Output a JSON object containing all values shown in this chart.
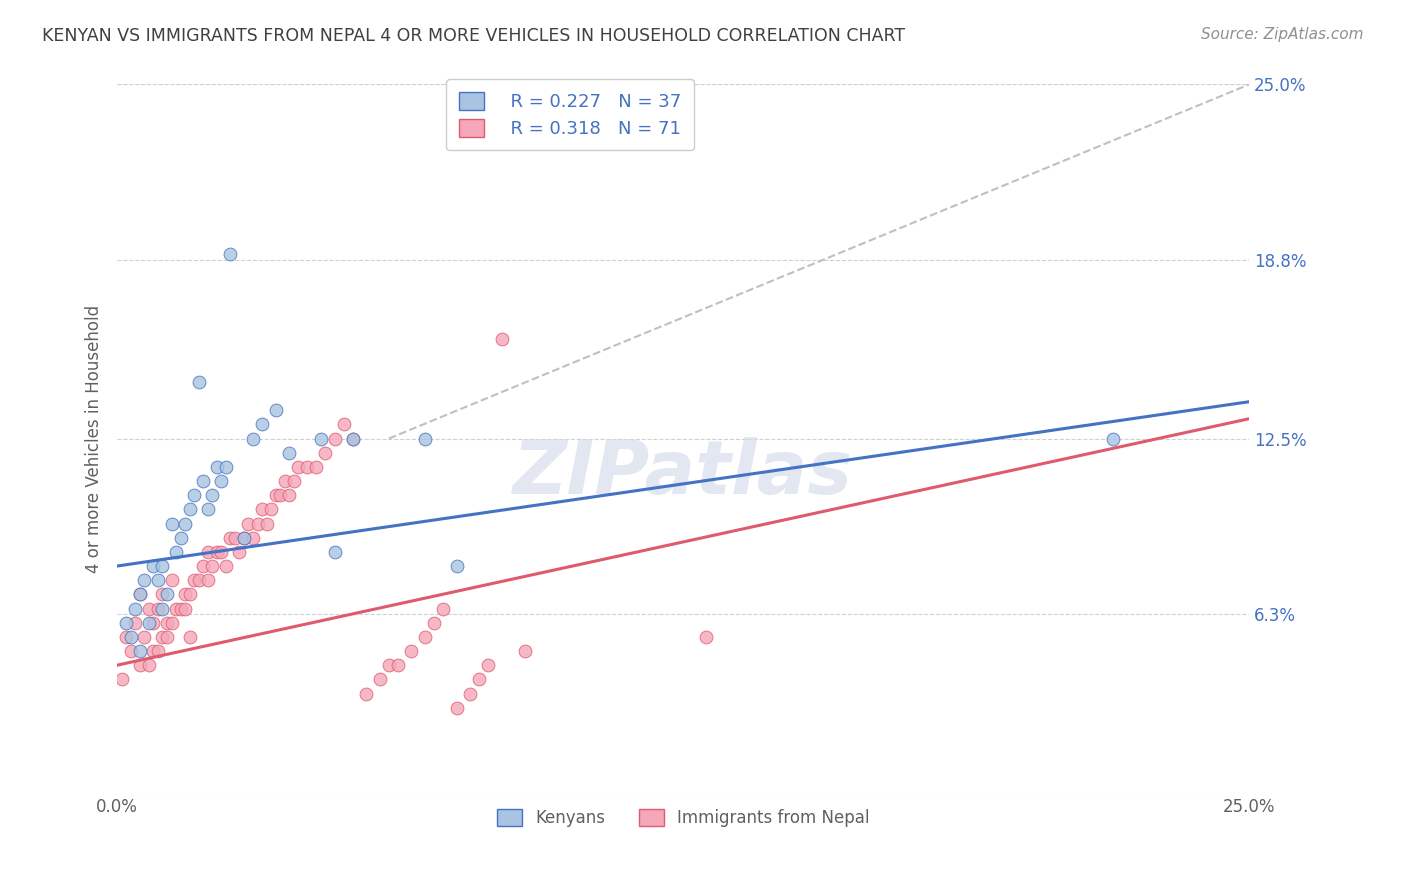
{
  "title": "KENYAN VS IMMIGRANTS FROM NEPAL 4 OR MORE VEHICLES IN HOUSEHOLD CORRELATION CHART",
  "source": "Source: ZipAtlas.com",
  "ylabel": "4 or more Vehicles in Household",
  "x_min": 0.0,
  "x_max": 25.0,
  "y_min": 0.0,
  "y_max": 25.0,
  "x_tick_labels": [
    "0.0%",
    "25.0%"
  ],
  "y_tick_labels_right": [
    "6.3%",
    "12.5%",
    "18.8%",
    "25.0%"
  ],
  "y_tick_values_right": [
    6.3,
    12.5,
    18.8,
    25.0
  ],
  "legend_label1": "Kenyans",
  "legend_label2": "Immigrants from Nepal",
  "legend_r1": "R = 0.227",
  "legend_n1": "N = 37",
  "legend_r2": "R = 0.318",
  "legend_n2": "N = 71",
  "color_kenyan": "#a8c4e0",
  "color_nepal": "#f4a7b9",
  "line_color_kenyan": "#4472c4",
  "line_color_nepal": "#e05a6e",
  "line_color_dashed": "#c0c0c0",
  "kenyan_x": [
    0.2,
    0.3,
    0.4,
    0.5,
    0.5,
    0.6,
    0.7,
    0.8,
    0.9,
    1.0,
    1.0,
    1.1,
    1.2,
    1.3,
    1.4,
    1.5,
    1.6,
    1.7,
    1.8,
    1.9,
    2.0,
    2.1,
    2.2,
    2.3,
    2.4,
    2.5,
    3.0,
    3.2,
    3.5,
    3.8,
    4.5,
    5.2,
    6.8,
    7.5,
    22.0,
    4.8,
    2.8
  ],
  "kenyan_y": [
    6.0,
    5.5,
    6.5,
    5.0,
    7.0,
    7.5,
    6.0,
    8.0,
    7.5,
    8.0,
    6.5,
    7.0,
    9.5,
    8.5,
    9.0,
    9.5,
    10.0,
    10.5,
    14.5,
    11.0,
    10.0,
    10.5,
    11.5,
    11.0,
    11.5,
    19.0,
    12.5,
    13.0,
    13.5,
    12.0,
    12.5,
    12.5,
    12.5,
    8.0,
    12.5,
    8.5,
    9.0
  ],
  "nepal_x": [
    0.1,
    0.2,
    0.3,
    0.4,
    0.5,
    0.5,
    0.6,
    0.7,
    0.7,
    0.8,
    0.8,
    0.9,
    0.9,
    1.0,
    1.0,
    1.1,
    1.1,
    1.2,
    1.2,
    1.3,
    1.4,
    1.5,
    1.5,
    1.6,
    1.6,
    1.7,
    1.8,
    1.9,
    2.0,
    2.0,
    2.1,
    2.2,
    2.3,
    2.4,
    2.5,
    2.6,
    2.7,
    2.8,
    2.9,
    3.0,
    3.1,
    3.2,
    3.3,
    3.4,
    3.5,
    3.6,
    3.7,
    3.8,
    3.9,
    4.0,
    4.2,
    4.4,
    4.6,
    4.8,
    5.0,
    5.2,
    5.5,
    5.8,
    6.0,
    6.2,
    6.5,
    6.8,
    7.0,
    7.2,
    7.5,
    7.8,
    8.0,
    8.2,
    8.5,
    9.0,
    13.0
  ],
  "nepal_y": [
    4.0,
    5.5,
    5.0,
    6.0,
    4.5,
    7.0,
    5.5,
    6.5,
    4.5,
    6.0,
    5.0,
    6.5,
    5.0,
    5.5,
    7.0,
    6.0,
    5.5,
    6.0,
    7.5,
    6.5,
    6.5,
    7.0,
    6.5,
    7.0,
    5.5,
    7.5,
    7.5,
    8.0,
    7.5,
    8.5,
    8.0,
    8.5,
    8.5,
    8.0,
    9.0,
    9.0,
    8.5,
    9.0,
    9.5,
    9.0,
    9.5,
    10.0,
    9.5,
    10.0,
    10.5,
    10.5,
    11.0,
    10.5,
    11.0,
    11.5,
    11.5,
    11.5,
    12.0,
    12.5,
    13.0,
    12.5,
    3.5,
    4.0,
    4.5,
    4.5,
    5.0,
    5.5,
    6.0,
    6.5,
    3.0,
    3.5,
    4.0,
    4.5,
    16.0,
    5.0,
    5.5
  ],
  "blue_line_x0": 0.0,
  "blue_line_y0": 8.0,
  "blue_line_x1": 25.0,
  "blue_line_y1": 13.8,
  "pink_line_x0": 0.0,
  "pink_line_y0": 4.5,
  "pink_line_x1": 25.0,
  "pink_line_y1": 13.2,
  "dashed_x0": 6.0,
  "dashed_y0": 12.5,
  "dashed_x1": 25.0,
  "dashed_y1": 25.0,
  "background_color": "#ffffff",
  "grid_color": "#d0d0d0",
  "title_color": "#404040",
  "watermark_color": "#d0d8e8",
  "marker_size": 85
}
